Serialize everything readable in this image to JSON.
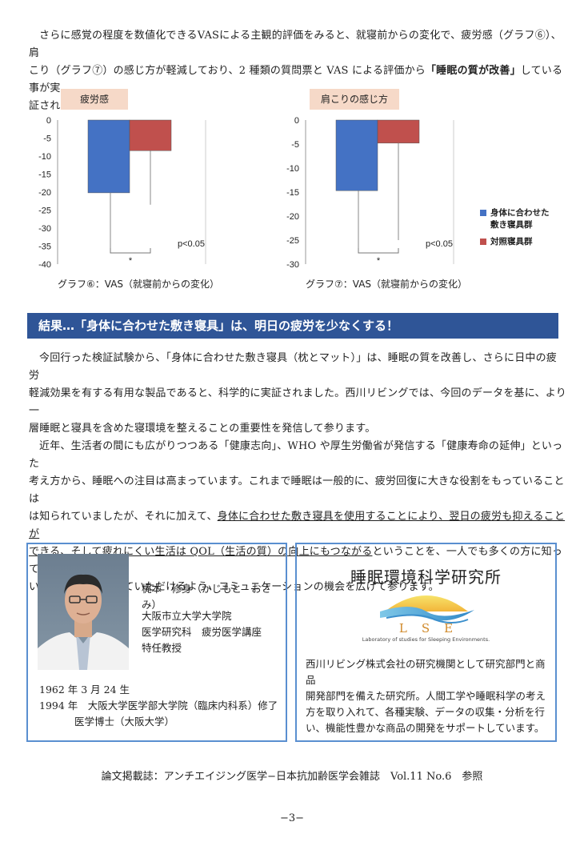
{
  "intro": {
    "line1": "さらに感覚の程度を数値化できるVASによる主観的評価をみると、就寝前からの変化で、疲労感（グラフ⑥）、肩",
    "line2a": "こり（グラフ⑦）の感じ方が軽減しており、2 種類の質問票と VAS による評価から",
    "line2b": "「睡眠の質が改善」",
    "line2c": "している事が実",
    "line3": "証されました。"
  },
  "chart_data": [
    {
      "type": "bar",
      "title": "疲労感",
      "categories": [
        "身体に合わせた敷き寝具群",
        "対照寝具群"
      ],
      "values": [
        -20.2,
        -8.5
      ],
      "error_lower": [
        -36.0,
        -23.5
      ],
      "ylim": [
        -40,
        0
      ],
      "yticks": [
        "0",
        "-5",
        "-10",
        "-15",
        "-20",
        "-25",
        "-30",
        "-35",
        "-40"
      ],
      "significance": "*",
      "pvalue": "p<0.05",
      "colors": [
        "#4472c4",
        "#c0504d"
      ],
      "caption": "グラフ⑥：VAS（就寝前からの変化）"
    },
    {
      "type": "bar",
      "title": "肩こりの感じ方",
      "categories": [
        "身体に合わせた敷き寝具群",
        "対照寝具群"
      ],
      "values": [
        -14.7,
        -4.8
      ],
      "error_lower": [
        -27.0,
        -25.0
      ],
      "ylim": [
        -30,
        0
      ],
      "yticks": [
        "0",
        "-5",
        "-10",
        "-15",
        "-20",
        "-25",
        "-30"
      ],
      "significance": "*",
      "pvalue": "p<0.05",
      "colors": [
        "#4472c4",
        "#c0504d"
      ],
      "caption": "グラフ⑦：VAS（就寝前からの変化）"
    }
  ],
  "legend": {
    "item1_line1": "身体に合わせた",
    "item1_line2": "敷き寝具群",
    "item2": "対照寝具群"
  },
  "banner": "結果…「身体に合わせた敷き寝具」は、明日の疲労を少なくする！",
  "body": {
    "p1_l1": "今回行った検証試験から、「身体に合わせた敷き寝具（枕とマット）」は、睡眠の質を改善し、さらに日中の疲労",
    "p1_l2": "軽減効果を有する有用な製品であると、科学的に実証されました。西川リビングでは、今回のデータを基に、より一",
    "p1_l3": "層睡眠と寝具を含めた寝環境を整えることの重要性を発信して参ります。",
    "p2_l1": "近年、生活者の間にも広がりつつある「健康志向」、WHO や厚生労働省が発信する「健康寿命の延伸」といった",
    "p2_l2": "考え方から、睡眠への注目は高まっています。これまで睡眠は一般的に、疲労回復に大きな役割をもっていることは",
    "p2_l3a": "は知られていましたが、それに加えて、",
    "p2_l3b": "身体に合わせた敷き寝具を使用することにより、翌日の疲労も抑えることが",
    "p2_l4a": "できる、そして疲れにくい生活は QOL（生活の質）の向上にもつながる",
    "p2_l4b": "ということを、一人でも多くの方に知ってもら",
    "p2_l5": "い、生活に取り入れていただけるよう、コミュニケーションの機会を広げて参ります。"
  },
  "profile": {
    "name": "梶本　修身（かじもと　おさみ）",
    "aff1": "大阪市立大学大学院",
    "aff2": "医学研究科　疲労医学講座",
    "aff3": "特任教授",
    "hist1": "1962 年 3 月 24 生",
    "hist2": "1994 年　大阪大学医学部大学院（臨床内科系）修了",
    "hist3": "医学博士（大阪大学）"
  },
  "lab": {
    "title": "睡眠環境科学研究所",
    "logo_letters": "LSE",
    "logo_sub": "Laboratory of studies for Sleeping Environments.",
    "d1": "西川リビング株式会社の研究機関として研究部門と商品",
    "d2": "開発部門を備えた研究所。人間工学や睡眠科学の考え",
    "d3": "方を取り入れて、各種実験、データの収集・分析を行",
    "d4": "い、機能性豊かな商品の開発をサポートしています。"
  },
  "footer": {
    "reference": "論文掲載誌：アンチエイジング医学−日本抗加齢医学会雑誌　Vol.11 No.6　参照",
    "page": "−3−"
  }
}
